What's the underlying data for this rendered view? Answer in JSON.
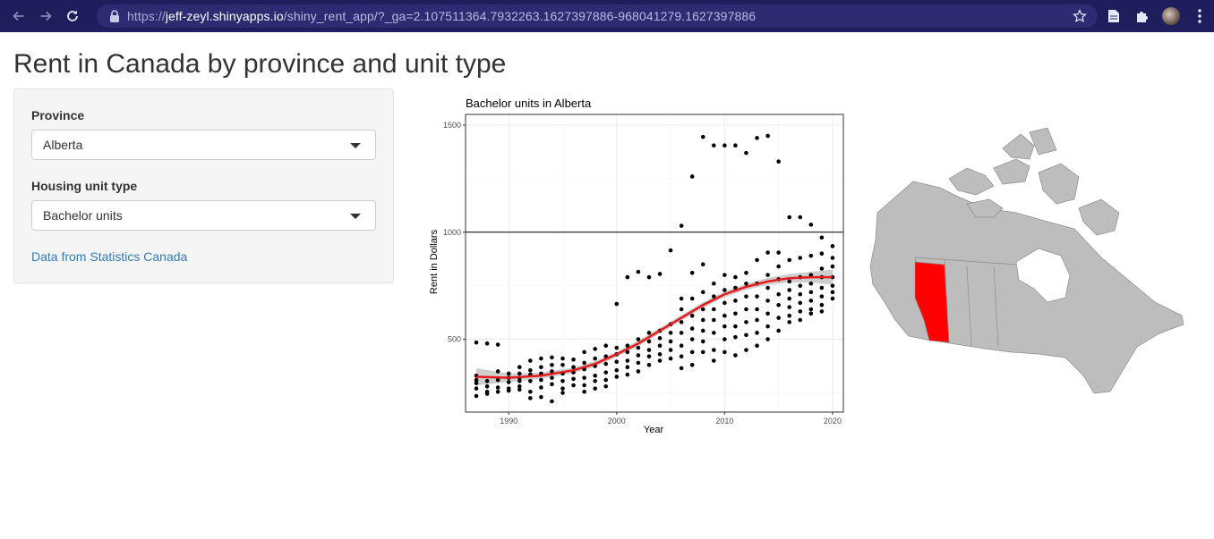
{
  "browser": {
    "url_scheme": "https://",
    "url_host": "jeff-zeyl.shinyapps.io",
    "url_path": "/shiny_rent_app/?_ga=2.107511364.7932263.1627397886-968041279.1627397886"
  },
  "page": {
    "title": "Rent in Canada by province and unit type"
  },
  "sidebar": {
    "province_label": "Province",
    "province_value": "Alberta",
    "unit_label": "Housing unit type",
    "unit_value": "Bachelor units",
    "link_text": "Data from Statistics Canada"
  },
  "chart_data": {
    "type": "scatter",
    "title": "Bachelor units in Alberta",
    "xlabel": "Year",
    "ylabel": "Rent in Dollars",
    "xlim": [
      1986,
      2021
    ],
    "ylim": [
      160,
      1550
    ],
    "x_ticks": [
      1990,
      2000,
      2010,
      2020
    ],
    "y_ticks": [
      500,
      1000,
      1500
    ],
    "hline": 1000,
    "grid": true,
    "point_color": "#000000",
    "smooth_color": "#e41a1c",
    "band_color": "#bdbdbd",
    "points": [
      [
        1987,
        485
      ],
      [
        1987,
        330
      ],
      [
        1987,
        310
      ],
      [
        1987,
        295
      ],
      [
        1987,
        270
      ],
      [
        1987,
        235
      ],
      [
        1988,
        480
      ],
      [
        1988,
        305
      ],
      [
        1988,
        280
      ],
      [
        1988,
        255
      ],
      [
        1988,
        245
      ],
      [
        1989,
        475
      ],
      [
        1989,
        350
      ],
      [
        1989,
        310
      ],
      [
        1989,
        275
      ],
      [
        1989,
        255
      ],
      [
        1990,
        340
      ],
      [
        1990,
        320
      ],
      [
        1990,
        300
      ],
      [
        1990,
        270
      ],
      [
        1990,
        260
      ],
      [
        1991,
        370
      ],
      [
        1991,
        340
      ],
      [
        1991,
        320
      ],
      [
        1991,
        305
      ],
      [
        1991,
        280
      ],
      [
        1991,
        265
      ],
      [
        1992,
        400
      ],
      [
        1992,
        355
      ],
      [
        1992,
        335
      ],
      [
        1992,
        305
      ],
      [
        1992,
        255
      ],
      [
        1992,
        225
      ],
      [
        1993,
        410
      ],
      [
        1993,
        370
      ],
      [
        1993,
        340
      ],
      [
        1993,
        310
      ],
      [
        1993,
        275
      ],
      [
        1993,
        230
      ],
      [
        1994,
        415
      ],
      [
        1994,
        380
      ],
      [
        1994,
        350
      ],
      [
        1994,
        320
      ],
      [
        1994,
        290
      ],
      [
        1994,
        210
      ],
      [
        1995,
        410
      ],
      [
        1995,
        380
      ],
      [
        1995,
        340
      ],
      [
        1995,
        305
      ],
      [
        1995,
        270
      ],
      [
        1995,
        250
      ],
      [
        1996,
        405
      ],
      [
        1996,
        370
      ],
      [
        1996,
        345
      ],
      [
        1996,
        315
      ],
      [
        1996,
        285
      ],
      [
        1997,
        440
      ],
      [
        1997,
        390
      ],
      [
        1997,
        360
      ],
      [
        1997,
        320
      ],
      [
        1997,
        285
      ],
      [
        1997,
        255
      ],
      [
        1998,
        455
      ],
      [
        1998,
        410
      ],
      [
        1998,
        375
      ],
      [
        1998,
        330
      ],
      [
        1998,
        305
      ],
      [
        1998,
        270
      ],
      [
        1999,
        470
      ],
      [
        1999,
        420
      ],
      [
        1999,
        385
      ],
      [
        1999,
        345
      ],
      [
        1999,
        310
      ],
      [
        1999,
        280
      ],
      [
        2000,
        665
      ],
      [
        2000,
        460
      ],
      [
        2000,
        430
      ],
      [
        2000,
        395
      ],
      [
        2000,
        355
      ],
      [
        2000,
        325
      ],
      [
        2001,
        790
      ],
      [
        2001,
        470
      ],
      [
        2001,
        440
      ],
      [
        2001,
        400
      ],
      [
        2001,
        370
      ],
      [
        2001,
        335
      ],
      [
        2002,
        815
      ],
      [
        2002,
        500
      ],
      [
        2002,
        460
      ],
      [
        2002,
        425
      ],
      [
        2002,
        390
      ],
      [
        2002,
        350
      ],
      [
        2003,
        790
      ],
      [
        2003,
        530
      ],
      [
        2003,
        490
      ],
      [
        2003,
        450
      ],
      [
        2003,
        420
      ],
      [
        2003,
        380
      ],
      [
        2004,
        805
      ],
      [
        2004,
        540
      ],
      [
        2004,
        505
      ],
      [
        2004,
        470
      ],
      [
        2004,
        430
      ],
      [
        2004,
        400
      ],
      [
        2005,
        915
      ],
      [
        2005,
        570
      ],
      [
        2005,
        530
      ],
      [
        2005,
        490
      ],
      [
        2005,
        450
      ],
      [
        2005,
        410
      ],
      [
        2006,
        1030
      ],
      [
        2006,
        690
      ],
      [
        2006,
        640
      ],
      [
        2006,
        580
      ],
      [
        2006,
        530
      ],
      [
        2006,
        470
      ],
      [
        2006,
        420
      ],
      [
        2006,
        365
      ],
      [
        2007,
        1260
      ],
      [
        2007,
        810
      ],
      [
        2007,
        690
      ],
      [
        2007,
        610
      ],
      [
        2007,
        550
      ],
      [
        2007,
        500
      ],
      [
        2007,
        440
      ],
      [
        2007,
        380
      ],
      [
        2008,
        1445
      ],
      [
        2008,
        850
      ],
      [
        2008,
        720
      ],
      [
        2008,
        640
      ],
      [
        2008,
        590
      ],
      [
        2008,
        540
      ],
      [
        2008,
        490
      ],
      [
        2008,
        440
      ],
      [
        2009,
        1405
      ],
      [
        2009,
        760
      ],
      [
        2009,
        700
      ],
      [
        2009,
        640
      ],
      [
        2009,
        590
      ],
      [
        2009,
        530
      ],
      [
        2009,
        450
      ],
      [
        2009,
        400
      ],
      [
        2010,
        1405
      ],
      [
        2010,
        800
      ],
      [
        2010,
        730
      ],
      [
        2010,
        670
      ],
      [
        2010,
        610
      ],
      [
        2010,
        560
      ],
      [
        2010,
        500
      ],
      [
        2010,
        440
      ],
      [
        2011,
        1405
      ],
      [
        2011,
        790
      ],
      [
        2011,
        740
      ],
      [
        2011,
        680
      ],
      [
        2011,
        620
      ],
      [
        2011,
        560
      ],
      [
        2011,
        510
      ],
      [
        2011,
        425
      ],
      [
        2012,
        1370
      ],
      [
        2012,
        810
      ],
      [
        2012,
        760
      ],
      [
        2012,
        700
      ],
      [
        2012,
        640
      ],
      [
        2012,
        580
      ],
      [
        2012,
        520
      ],
      [
        2012,
        450
      ],
      [
        2013,
        1440
      ],
      [
        2013,
        870
      ],
      [
        2013,
        760
      ],
      [
        2013,
        700
      ],
      [
        2013,
        640
      ],
      [
        2013,
        590
      ],
      [
        2013,
        530
      ],
      [
        2013,
        470
      ],
      [
        2014,
        1450
      ],
      [
        2014,
        905
      ],
      [
        2014,
        800
      ],
      [
        2014,
        740
      ],
      [
        2014,
        680
      ],
      [
        2014,
        620
      ],
      [
        2014,
        560
      ],
      [
        2014,
        500
      ],
      [
        2015,
        1330
      ],
      [
        2015,
        905
      ],
      [
        2015,
        840
      ],
      [
        2015,
        780
      ],
      [
        2015,
        710
      ],
      [
        2015,
        660
      ],
      [
        2015,
        600
      ],
      [
        2015,
        540
      ],
      [
        2016,
        1070
      ],
      [
        2016,
        870
      ],
      [
        2016,
        770
      ],
      [
        2016,
        730
      ],
      [
        2016,
        690
      ],
      [
        2016,
        650
      ],
      [
        2016,
        610
      ],
      [
        2016,
        580
      ],
      [
        2017,
        1070
      ],
      [
        2017,
        880
      ],
      [
        2017,
        790
      ],
      [
        2017,
        750
      ],
      [
        2017,
        710
      ],
      [
        2017,
        670
      ],
      [
        2017,
        630
      ],
      [
        2017,
        590
      ],
      [
        2018,
        1035
      ],
      [
        2018,
        890
      ],
      [
        2018,
        800
      ],
      [
        2018,
        760
      ],
      [
        2018,
        720
      ],
      [
        2018,
        680
      ],
      [
        2018,
        640
      ],
      [
        2018,
        620
      ],
      [
        2019,
        975
      ],
      [
        2019,
        900
      ],
      [
        2019,
        830
      ],
      [
        2019,
        790
      ],
      [
        2019,
        740
      ],
      [
        2019,
        700
      ],
      [
        2019,
        660
      ],
      [
        2019,
        630
      ],
      [
        2020,
        935
      ],
      [
        2020,
        880
      ],
      [
        2020,
        840
      ],
      [
        2020,
        790
      ],
      [
        2020,
        750
      ],
      [
        2020,
        720
      ],
      [
        2020,
        690
      ]
    ],
    "smooth": [
      [
        1987,
        325
      ],
      [
        1990,
        320
      ],
      [
        1993,
        330
      ],
      [
        1996,
        355
      ],
      [
        1998,
        385
      ],
      [
        2000,
        430
      ],
      [
        2002,
        480
      ],
      [
        2004,
        540
      ],
      [
        2006,
        600
      ],
      [
        2008,
        660
      ],
      [
        2010,
        710
      ],
      [
        2012,
        745
      ],
      [
        2014,
        770
      ],
      [
        2016,
        785
      ],
      [
        2018,
        790
      ],
      [
        2020,
        790
      ]
    ],
    "smooth_band": [
      [
        1987,
        365,
        285
      ],
      [
        1990,
        340,
        300
      ],
      [
        1993,
        345,
        315
      ],
      [
        1996,
        368,
        342
      ],
      [
        1998,
        398,
        372
      ],
      [
        2000,
        442,
        418
      ],
      [
        2002,
        494,
        466
      ],
      [
        2004,
        553,
        527
      ],
      [
        2006,
        613,
        587
      ],
      [
        2008,
        673,
        647
      ],
      [
        2010,
        723,
        697
      ],
      [
        2012,
        759,
        731
      ],
      [
        2014,
        786,
        754
      ],
      [
        2016,
        805,
        765
      ],
      [
        2018,
        815,
        765
      ],
      [
        2020,
        825,
        755
      ]
    ]
  },
  "map": {
    "highlight_color": "#ff0000",
    "base_color": "#bdbdbd"
  }
}
